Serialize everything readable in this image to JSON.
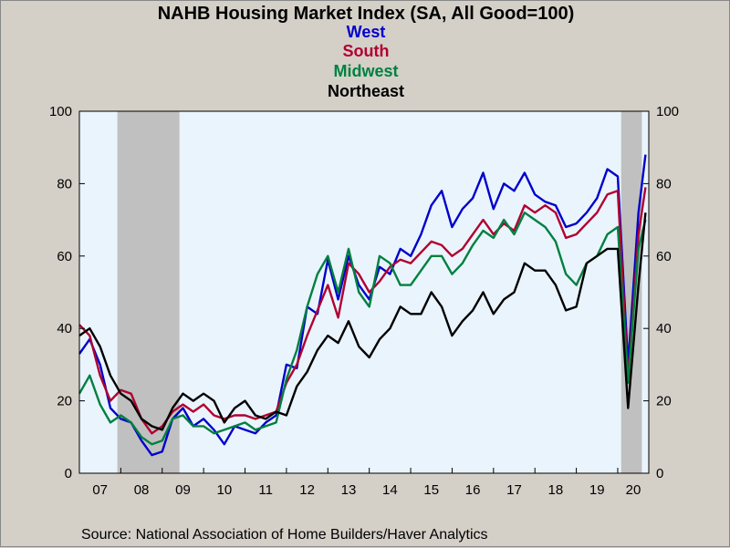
{
  "chart_data": {
    "type": "line",
    "title": "NAHB Housing Market Index (SA, All Good=100)",
    "source": "Source:  National Association of Home Builders/Haver Analytics",
    "x_tick_labels": [
      "07",
      "08",
      "09",
      "10",
      "11",
      "12",
      "13",
      "14",
      "15",
      "16",
      "17",
      "18",
      "19",
      "20"
    ],
    "y_ticks": [
      0,
      20,
      40,
      60,
      80,
      100
    ],
    "ylim": [
      0,
      100
    ],
    "xlim": [
      2007.0,
      2020.75
    ],
    "plot_background": "#eaf4fd",
    "recessions": [
      [
        2007.917,
        2009.417
      ],
      [
        2020.083,
        2020.583
      ]
    ],
    "series": [
      {
        "name": "West",
        "color": "#0000cc",
        "points": [
          [
            2007.0,
            33
          ],
          [
            2007.25,
            37
          ],
          [
            2007.5,
            30
          ],
          [
            2007.75,
            18
          ],
          [
            2008.0,
            15
          ],
          [
            2008.25,
            14
          ],
          [
            2008.5,
            9
          ],
          [
            2008.75,
            5
          ],
          [
            2009.0,
            6
          ],
          [
            2009.25,
            15
          ],
          [
            2009.5,
            18
          ],
          [
            2009.75,
            13
          ],
          [
            2010.0,
            15
          ],
          [
            2010.25,
            12
          ],
          [
            2010.5,
            8
          ],
          [
            2010.75,
            13
          ],
          [
            2011.0,
            12
          ],
          [
            2011.25,
            11
          ],
          [
            2011.5,
            14
          ],
          [
            2011.75,
            16
          ],
          [
            2012.0,
            30
          ],
          [
            2012.25,
            29
          ],
          [
            2012.5,
            46
          ],
          [
            2012.75,
            44
          ],
          [
            2013.0,
            59
          ],
          [
            2013.25,
            48
          ],
          [
            2013.5,
            60
          ],
          [
            2013.75,
            52
          ],
          [
            2014.0,
            48
          ],
          [
            2014.25,
            57
          ],
          [
            2014.5,
            55
          ],
          [
            2014.75,
            62
          ],
          [
            2015.0,
            60
          ],
          [
            2015.25,
            66
          ],
          [
            2015.5,
            74
          ],
          [
            2015.75,
            78
          ],
          [
            2016.0,
            68
          ],
          [
            2016.25,
            73
          ],
          [
            2016.5,
            76
          ],
          [
            2016.75,
            83
          ],
          [
            2017.0,
            73
          ],
          [
            2017.25,
            80
          ],
          [
            2017.5,
            78
          ],
          [
            2017.75,
            83
          ],
          [
            2018.0,
            77
          ],
          [
            2018.25,
            75
          ],
          [
            2018.5,
            74
          ],
          [
            2018.75,
            68
          ],
          [
            2019.0,
            69
          ],
          [
            2019.25,
            72
          ],
          [
            2019.5,
            76
          ],
          [
            2019.75,
            84
          ],
          [
            2020.0,
            82
          ],
          [
            2020.25,
            30
          ],
          [
            2020.5,
            72
          ],
          [
            2020.67,
            88
          ]
        ]
      },
      {
        "name": "South",
        "color": "#b00030",
        "points": [
          [
            2007.0,
            41
          ],
          [
            2007.25,
            38
          ],
          [
            2007.5,
            27
          ],
          [
            2007.75,
            20
          ],
          [
            2008.0,
            23
          ],
          [
            2008.25,
            22
          ],
          [
            2008.5,
            15
          ],
          [
            2008.75,
            11
          ],
          [
            2009.0,
            13
          ],
          [
            2009.25,
            17
          ],
          [
            2009.5,
            19
          ],
          [
            2009.75,
            17
          ],
          [
            2010.0,
            19
          ],
          [
            2010.25,
            16
          ],
          [
            2010.5,
            15
          ],
          [
            2010.75,
            16
          ],
          [
            2011.0,
            16
          ],
          [
            2011.25,
            15
          ],
          [
            2011.5,
            16
          ],
          [
            2011.75,
            17
          ],
          [
            2012.0,
            25
          ],
          [
            2012.25,
            30
          ],
          [
            2012.5,
            38
          ],
          [
            2012.75,
            45
          ],
          [
            2013.0,
            52
          ],
          [
            2013.25,
            43
          ],
          [
            2013.5,
            58
          ],
          [
            2013.75,
            55
          ],
          [
            2014.0,
            50
          ],
          [
            2014.25,
            53
          ],
          [
            2014.5,
            57
          ],
          [
            2014.75,
            59
          ],
          [
            2015.0,
            58
          ],
          [
            2015.25,
            61
          ],
          [
            2015.5,
            64
          ],
          [
            2015.75,
            63
          ],
          [
            2016.0,
            60
          ],
          [
            2016.25,
            62
          ],
          [
            2016.5,
            66
          ],
          [
            2016.75,
            70
          ],
          [
            2017.0,
            66
          ],
          [
            2017.25,
            69
          ],
          [
            2017.5,
            67
          ],
          [
            2017.75,
            74
          ],
          [
            2018.0,
            72
          ],
          [
            2018.25,
            74
          ],
          [
            2018.5,
            72
          ],
          [
            2018.75,
            65
          ],
          [
            2019.0,
            66
          ],
          [
            2019.25,
            69
          ],
          [
            2019.5,
            72
          ],
          [
            2019.75,
            77
          ],
          [
            2020.0,
            78
          ],
          [
            2020.25,
            26
          ],
          [
            2020.5,
            66
          ],
          [
            2020.67,
            79
          ]
        ]
      },
      {
        "name": "Midwest",
        "color": "#008040",
        "points": [
          [
            2007.0,
            22
          ],
          [
            2007.25,
            27
          ],
          [
            2007.5,
            19
          ],
          [
            2007.75,
            14
          ],
          [
            2008.0,
            16
          ],
          [
            2008.25,
            14
          ],
          [
            2008.5,
            10
          ],
          [
            2008.75,
            8
          ],
          [
            2009.0,
            9
          ],
          [
            2009.25,
            15
          ],
          [
            2009.5,
            16
          ],
          [
            2009.75,
            13
          ],
          [
            2010.0,
            13
          ],
          [
            2010.25,
            11
          ],
          [
            2010.5,
            12
          ],
          [
            2010.75,
            13
          ],
          [
            2011.0,
            14
          ],
          [
            2011.25,
            12
          ],
          [
            2011.5,
            13
          ],
          [
            2011.75,
            14
          ],
          [
            2012.0,
            26
          ],
          [
            2012.25,
            34
          ],
          [
            2012.5,
            46
          ],
          [
            2012.75,
            55
          ],
          [
            2013.0,
            60
          ],
          [
            2013.25,
            50
          ],
          [
            2013.5,
            62
          ],
          [
            2013.75,
            50
          ],
          [
            2014.0,
            46
          ],
          [
            2014.25,
            60
          ],
          [
            2014.5,
            58
          ],
          [
            2014.75,
            52
          ],
          [
            2015.0,
            52
          ],
          [
            2015.25,
            56
          ],
          [
            2015.5,
            60
          ],
          [
            2015.75,
            60
          ],
          [
            2016.0,
            55
          ],
          [
            2016.25,
            58
          ],
          [
            2016.5,
            63
          ],
          [
            2016.75,
            67
          ],
          [
            2017.0,
            65
          ],
          [
            2017.25,
            70
          ],
          [
            2017.5,
            66
          ],
          [
            2017.75,
            72
          ],
          [
            2018.0,
            70
          ],
          [
            2018.25,
            68
          ],
          [
            2018.5,
            64
          ],
          [
            2018.75,
            55
          ],
          [
            2019.0,
            52
          ],
          [
            2019.25,
            58
          ],
          [
            2019.5,
            60
          ],
          [
            2019.75,
            66
          ],
          [
            2020.0,
            68
          ],
          [
            2020.25,
            25
          ],
          [
            2020.5,
            62
          ],
          [
            2020.67,
            70
          ]
        ]
      },
      {
        "name": "Northeast",
        "color": "#000000",
        "points": [
          [
            2007.0,
            38
          ],
          [
            2007.25,
            40
          ],
          [
            2007.5,
            35
          ],
          [
            2007.75,
            27
          ],
          [
            2008.0,
            22
          ],
          [
            2008.25,
            20
          ],
          [
            2008.5,
            15
          ],
          [
            2008.75,
            13
          ],
          [
            2009.0,
            12
          ],
          [
            2009.25,
            18
          ],
          [
            2009.5,
            22
          ],
          [
            2009.75,
            20
          ],
          [
            2010.0,
            22
          ],
          [
            2010.25,
            20
          ],
          [
            2010.5,
            14
          ],
          [
            2010.75,
            18
          ],
          [
            2011.0,
            20
          ],
          [
            2011.25,
            16
          ],
          [
            2011.5,
            15
          ],
          [
            2011.75,
            17
          ],
          [
            2012.0,
            16
          ],
          [
            2012.25,
            24
          ],
          [
            2012.5,
            28
          ],
          [
            2012.75,
            34
          ],
          [
            2013.0,
            38
          ],
          [
            2013.25,
            36
          ],
          [
            2013.5,
            42
          ],
          [
            2013.75,
            35
          ],
          [
            2014.0,
            32
          ],
          [
            2014.25,
            37
          ],
          [
            2014.5,
            40
          ],
          [
            2014.75,
            46
          ],
          [
            2015.0,
            44
          ],
          [
            2015.25,
            44
          ],
          [
            2015.5,
            50
          ],
          [
            2015.75,
            46
          ],
          [
            2016.0,
            38
          ],
          [
            2016.25,
            42
          ],
          [
            2016.5,
            45
          ],
          [
            2016.75,
            50
          ],
          [
            2017.0,
            44
          ],
          [
            2017.25,
            48
          ],
          [
            2017.5,
            50
          ],
          [
            2017.75,
            58
          ],
          [
            2018.0,
            56
          ],
          [
            2018.25,
            56
          ],
          [
            2018.5,
            52
          ],
          [
            2018.75,
            45
          ],
          [
            2019.0,
            46
          ],
          [
            2019.25,
            58
          ],
          [
            2019.5,
            60
          ],
          [
            2019.75,
            62
          ],
          [
            2020.0,
            62
          ],
          [
            2020.25,
            18
          ],
          [
            2020.5,
            52
          ],
          [
            2020.67,
            72
          ]
        ]
      }
    ]
  }
}
